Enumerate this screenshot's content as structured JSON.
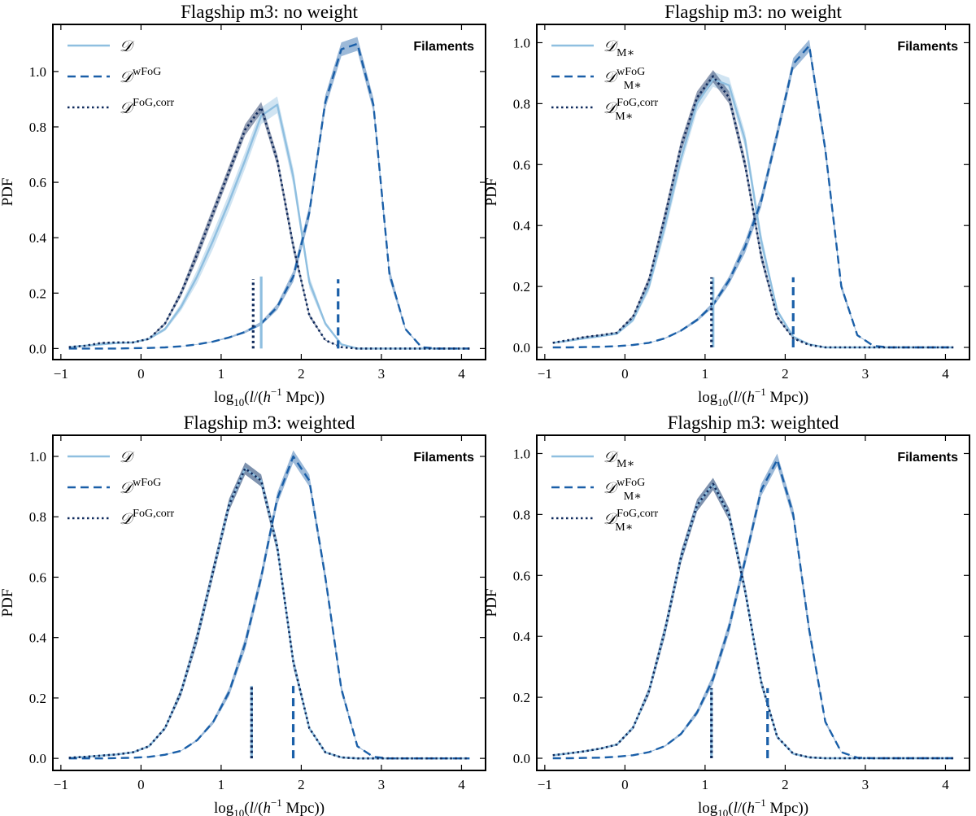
{
  "figure": {
    "colors": {
      "d": "#8fbfe0",
      "wfog": "#1a5fa8",
      "fogcorr": "#0f2a5c",
      "band_d": "#a9cde8",
      "band_wfog": "#4a7fb8",
      "band_fogcorr": "#3a4f77"
    }
  },
  "chart_data": [
    {
      "type": "line",
      "title": "Flagship m3: no weight",
      "xlabel": "log10(l/(h−1 Mpc))",
      "xlabel_parts": {
        "pre": "log",
        "sub": "10",
        "mid": "(l/(",
        "h": "h",
        "sup": "−1",
        "post": " Mpc))"
      },
      "ylabel": "PDF",
      "xlim": [
        -1.1,
        4.3
      ],
      "ylim": [
        -0.04,
        1.17
      ],
      "xticks": [
        -1,
        0,
        1,
        2,
        3,
        4
      ],
      "yticks": [
        0.0,
        0.2,
        0.4,
        0.6,
        0.8,
        1.0
      ],
      "annotation": "Filaments",
      "legend_position": "top-left",
      "series": [
        {
          "name": "D",
          "label_main": "𝒟",
          "label_sub": "",
          "label_sup": "",
          "style": "solid",
          "color": "#8fbfe0",
          "band": 0.03,
          "x": [
            -0.9,
            -0.7,
            -0.5,
            -0.3,
            -0.1,
            0.1,
            0.3,
            0.5,
            0.7,
            0.9,
            1.1,
            1.3,
            1.5,
            1.7,
            1.9,
            2.1,
            2.3,
            2.5,
            2.7,
            2.9,
            3.1,
            3.3,
            3.5,
            3.7,
            3.9,
            4.1
          ],
          "y": [
            0.005,
            0.01,
            0.015,
            0.02,
            0.022,
            0.035,
            0.07,
            0.15,
            0.26,
            0.39,
            0.53,
            0.68,
            0.84,
            0.88,
            0.62,
            0.24,
            0.09,
            0.015,
            0.0,
            0.0,
            0.0,
            0.0,
            0.0,
            0.0,
            0.0,
            0.0
          ],
          "median": 1.5,
          "median_height": 0.26
        },
        {
          "name": "D wFoG",
          "label_main": "𝒟",
          "label_sub": "",
          "label_sup": "wFoG",
          "style": "dashed",
          "color": "#1a5fa8",
          "band": 0.025,
          "x": [
            -0.9,
            -0.7,
            -0.5,
            -0.3,
            -0.1,
            0.1,
            0.3,
            0.5,
            0.7,
            0.9,
            1.1,
            1.3,
            1.5,
            1.7,
            1.9,
            2.1,
            2.3,
            2.5,
            2.7,
            2.9,
            3.1,
            3.3,
            3.5,
            3.7,
            3.9,
            4.1
          ],
          "y": [
            0.0,
            0.0,
            0.0,
            0.0,
            0.001,
            0.002,
            0.004,
            0.008,
            0.015,
            0.025,
            0.04,
            0.06,
            0.09,
            0.15,
            0.26,
            0.49,
            0.89,
            1.08,
            1.1,
            0.88,
            0.27,
            0.07,
            0.005,
            0.0,
            0.0,
            0.0
          ],
          "median": 2.46,
          "median_height": 0.25
        },
        {
          "name": "D FoG,corr",
          "label_main": "𝒟",
          "label_sub": "",
          "label_sup": "FoG,corr",
          "style": "dotted",
          "color": "#0f2a5c",
          "band": 0.02,
          "x": [
            -0.9,
            -0.7,
            -0.5,
            -0.3,
            -0.1,
            0.1,
            0.3,
            0.5,
            0.7,
            0.9,
            1.1,
            1.3,
            1.5,
            1.7,
            1.9,
            2.1,
            2.3,
            2.5,
            2.7,
            2.9,
            3.1,
            3.3,
            3.5,
            3.7,
            3.9,
            4.1
          ],
          "y": [
            0.005,
            0.01,
            0.02,
            0.022,
            0.022,
            0.035,
            0.09,
            0.2,
            0.34,
            0.49,
            0.64,
            0.79,
            0.87,
            0.68,
            0.37,
            0.12,
            0.03,
            0.005,
            0.0,
            0.0,
            0.0,
            0.0,
            0.0,
            0.0,
            0.0,
            0.0
          ],
          "median": 1.4,
          "median_height": 0.25
        }
      ]
    },
    {
      "type": "line",
      "title": "Flagship m3: no weight",
      "xlabel": "log10(l/(h−1 Mpc))",
      "xlabel_parts": {
        "pre": "log",
        "sub": "10",
        "mid": "(l/(",
        "h": "h",
        "sup": "−1",
        "post": " Mpc))"
      },
      "ylabel": "PDF",
      "xlim": [
        -1.1,
        4.3
      ],
      "ylim": [
        -0.04,
        1.06
      ],
      "xticks": [
        -1,
        0,
        1,
        2,
        3,
        4
      ],
      "yticks": [
        0.0,
        0.2,
        0.4,
        0.6,
        0.8,
        1.0
      ],
      "annotation": "Filaments",
      "legend_position": "top-left",
      "series": [
        {
          "name": "D M*",
          "label_main": "𝒟",
          "label_sub": "M∗",
          "label_sup": "",
          "style": "solid",
          "color": "#8fbfe0",
          "band": 0.025,
          "x": [
            -0.9,
            -0.7,
            -0.5,
            -0.3,
            -0.1,
            0.1,
            0.3,
            0.5,
            0.7,
            0.9,
            1.1,
            1.3,
            1.5,
            1.7,
            1.9,
            2.1,
            2.3,
            2.5,
            2.7,
            2.9,
            3.1,
            3.3,
            3.5,
            3.7,
            3.9,
            4.1
          ],
          "y": [
            0.015,
            0.022,
            0.03,
            0.037,
            0.045,
            0.09,
            0.2,
            0.4,
            0.62,
            0.8,
            0.88,
            0.86,
            0.68,
            0.35,
            0.12,
            0.035,
            0.01,
            0.0,
            0.0,
            0.0,
            0.0,
            0.0,
            0.0,
            0.0,
            0.0,
            0.0
          ],
          "median": 1.1,
          "median_height": 0.23
        },
        {
          "name": "D M* wFoG",
          "label_main": "𝒟",
          "label_sub": "M∗",
          "label_sup": "wFoG",
          "style": "dashed",
          "color": "#1a5fa8",
          "band": 0.02,
          "x": [
            -0.9,
            -0.7,
            -0.5,
            -0.3,
            -0.1,
            0.1,
            0.3,
            0.5,
            0.7,
            0.9,
            1.1,
            1.3,
            1.5,
            1.7,
            1.9,
            2.1,
            2.3,
            2.5,
            2.7,
            2.9,
            3.1,
            3.3,
            3.5,
            3.7,
            3.9,
            4.1
          ],
          "y": [
            0.0,
            0.0,
            0.001,
            0.002,
            0.004,
            0.008,
            0.015,
            0.03,
            0.055,
            0.09,
            0.14,
            0.22,
            0.33,
            0.48,
            0.7,
            0.93,
            0.99,
            0.65,
            0.2,
            0.04,
            0.005,
            0.0,
            0.0,
            0.0,
            0.0,
            0.0
          ],
          "median": 2.1,
          "median_height": 0.23
        },
        {
          "name": "D M* FoG,corr",
          "label_main": "𝒟",
          "label_sub": "M∗",
          "label_sup": "FoG,corr",
          "style": "dotted",
          "color": "#0f2a5c",
          "band": 0.02,
          "x": [
            -0.9,
            -0.7,
            -0.5,
            -0.3,
            -0.1,
            0.1,
            0.3,
            0.5,
            0.7,
            0.9,
            1.1,
            1.3,
            1.5,
            1.7,
            1.9,
            2.1,
            2.3,
            2.5,
            2.7,
            2.9,
            3.1,
            3.3,
            3.5,
            3.7,
            3.9,
            4.1
          ],
          "y": [
            0.015,
            0.024,
            0.034,
            0.04,
            0.048,
            0.1,
            0.22,
            0.43,
            0.66,
            0.82,
            0.89,
            0.82,
            0.6,
            0.3,
            0.1,
            0.03,
            0.008,
            0.0,
            0.0,
            0.0,
            0.0,
            0.0,
            0.0,
            0.0,
            0.0,
            0.0
          ],
          "median": 1.08,
          "median_height": 0.23
        }
      ]
    },
    {
      "type": "line",
      "title": "Flagship m3: weighted",
      "xlabel": "log10(l/(h−1 Mpc))",
      "xlabel_parts": {
        "pre": "log",
        "sub": "10",
        "mid": "(l/(",
        "h": "h",
        "sup": "−1",
        "post": " Mpc))"
      },
      "ylabel": "PDF",
      "xlim": [
        -1.1,
        4.3
      ],
      "ylim": [
        -0.04,
        1.07
      ],
      "xticks": [
        -1,
        0,
        1,
        2,
        3,
        4
      ],
      "yticks": [
        0.0,
        0.2,
        0.4,
        0.6,
        0.8,
        1.0
      ],
      "annotation": "Filaments",
      "legend_position": "top-left",
      "series": [
        {
          "name": "D",
          "label_main": "𝒟",
          "label_sub": "",
          "label_sup": "",
          "style": "solid",
          "color": "#8fbfe0",
          "band": 0.02,
          "x": [
            -0.9,
            -0.7,
            -0.5,
            -0.3,
            -0.1,
            0.1,
            0.3,
            0.5,
            0.7,
            0.9,
            1.1,
            1.3,
            1.5,
            1.7,
            1.9,
            2.1,
            2.3,
            2.5,
            2.7,
            2.9,
            3.1,
            3.3,
            3.5,
            3.7,
            3.9,
            4.1
          ],
          "y": [
            0.002,
            0.005,
            0.009,
            0.013,
            0.02,
            0.04,
            0.1,
            0.22,
            0.4,
            0.62,
            0.84,
            0.96,
            0.92,
            0.7,
            0.32,
            0.1,
            0.02,
            0.003,
            0.0,
            0.0,
            0.0,
            0.0,
            0.0,
            0.0,
            0.0,
            0.0
          ],
          "median": 1.38,
          "median_height": 0.24
        },
        {
          "name": "D wFoG",
          "label_main": "𝒟",
          "label_sub": "",
          "label_sup": "wFoG",
          "style": "dashed",
          "color": "#1a5fa8",
          "band": 0.02,
          "x": [
            -0.9,
            -0.7,
            -0.5,
            -0.3,
            -0.1,
            0.1,
            0.3,
            0.5,
            0.7,
            0.9,
            1.1,
            1.3,
            1.5,
            1.7,
            1.9,
            2.1,
            2.3,
            2.5,
            2.7,
            2.9,
            3.1,
            3.3,
            3.5,
            3.7,
            3.9,
            4.1
          ],
          "y": [
            0.0,
            0.0,
            0.0,
            0.001,
            0.002,
            0.005,
            0.012,
            0.025,
            0.06,
            0.12,
            0.22,
            0.38,
            0.6,
            0.86,
            1.0,
            0.92,
            0.6,
            0.23,
            0.04,
            0.005,
            0.0,
            0.0,
            0.0,
            0.0,
            0.0,
            0.0
          ],
          "median": 1.9,
          "median_height": 0.24
        },
        {
          "name": "D FoG,corr",
          "label_main": "𝒟",
          "label_sub": "",
          "label_sup": "FoG,corr",
          "style": "dotted",
          "color": "#0f2a5c",
          "band": 0.02,
          "x": [
            -0.9,
            -0.7,
            -0.5,
            -0.3,
            -0.1,
            0.1,
            0.3,
            0.5,
            0.7,
            0.9,
            1.1,
            1.3,
            1.5,
            1.7,
            1.9,
            2.1,
            2.3,
            2.5,
            2.7,
            2.9,
            3.1,
            3.3,
            3.5,
            3.7,
            3.9,
            4.1
          ],
          "y": [
            0.002,
            0.005,
            0.009,
            0.013,
            0.02,
            0.04,
            0.1,
            0.22,
            0.4,
            0.62,
            0.84,
            0.96,
            0.92,
            0.7,
            0.32,
            0.1,
            0.02,
            0.003,
            0.0,
            0.0,
            0.0,
            0.0,
            0.0,
            0.0,
            0.0,
            0.0
          ],
          "median": 1.38,
          "median_height": 0.24
        }
      ]
    },
    {
      "type": "line",
      "title": "Flagship m3: weighted",
      "xlabel": "log10(l/(h−1 Mpc))",
      "xlabel_parts": {
        "pre": "log",
        "sub": "10",
        "mid": "(l/(",
        "h": "h",
        "sup": "−1",
        "post": " Mpc))"
      },
      "ylabel": "PDF",
      "xlim": [
        -1.1,
        4.3
      ],
      "ylim": [
        -0.04,
        1.06
      ],
      "xticks": [
        -1,
        0,
        1,
        2,
        3,
        4
      ],
      "yticks": [
        0.0,
        0.2,
        0.4,
        0.6,
        0.8,
        1.0
      ],
      "annotation": "Filaments",
      "legend_position": "top-left",
      "series": [
        {
          "name": "D M*",
          "label_main": "𝒟",
          "label_sub": "M∗",
          "label_sup": "",
          "style": "solid",
          "color": "#8fbfe0",
          "band": 0.02,
          "x": [
            -0.9,
            -0.7,
            -0.5,
            -0.3,
            -0.1,
            0.1,
            0.3,
            0.5,
            0.7,
            0.9,
            1.1,
            1.3,
            1.5,
            1.7,
            1.9,
            2.1,
            2.3,
            2.5,
            2.7,
            2.9,
            3.1,
            3.3,
            3.5,
            3.7,
            3.9,
            4.1
          ],
          "y": [
            0.01,
            0.016,
            0.023,
            0.032,
            0.045,
            0.1,
            0.22,
            0.42,
            0.66,
            0.83,
            0.9,
            0.8,
            0.55,
            0.25,
            0.07,
            0.015,
            0.003,
            0.0,
            0.0,
            0.0,
            0.0,
            0.0,
            0.0,
            0.0,
            0.0,
            0.0
          ],
          "median": 1.08,
          "median_height": 0.23
        },
        {
          "name": "D M* wFoG",
          "label_main": "𝒟",
          "label_sub": "M∗",
          "label_sup": "wFoG",
          "style": "dashed",
          "color": "#1a5fa8",
          "band": 0.02,
          "x": [
            -0.9,
            -0.7,
            -0.5,
            -0.3,
            -0.1,
            0.1,
            0.3,
            0.5,
            0.7,
            0.9,
            1.1,
            1.3,
            1.5,
            1.7,
            1.9,
            2.1,
            2.3,
            2.5,
            2.7,
            2.9,
            3.1,
            3.3,
            3.5,
            3.7,
            3.9,
            4.1
          ],
          "y": [
            0.0,
            0.0,
            0.001,
            0.002,
            0.005,
            0.01,
            0.02,
            0.04,
            0.08,
            0.15,
            0.26,
            0.43,
            0.65,
            0.88,
            0.98,
            0.8,
            0.42,
            0.12,
            0.02,
            0.002,
            0.0,
            0.0,
            0.0,
            0.0,
            0.0,
            0.0
          ],
          "median": 1.78,
          "median_height": 0.23
        },
        {
          "name": "D M* FoG,corr",
          "label_main": "𝒟",
          "label_sub": "M∗",
          "label_sup": "FoG,corr",
          "style": "dotted",
          "color": "#0f2a5c",
          "band": 0.02,
          "x": [
            -0.9,
            -0.7,
            -0.5,
            -0.3,
            -0.1,
            0.1,
            0.3,
            0.5,
            0.7,
            0.9,
            1.1,
            1.3,
            1.5,
            1.7,
            1.9,
            2.1,
            2.3,
            2.5,
            2.7,
            2.9,
            3.1,
            3.3,
            3.5,
            3.7,
            3.9,
            4.1
          ],
          "y": [
            0.01,
            0.016,
            0.023,
            0.032,
            0.045,
            0.1,
            0.22,
            0.42,
            0.66,
            0.83,
            0.9,
            0.8,
            0.55,
            0.25,
            0.07,
            0.015,
            0.003,
            0.0,
            0.0,
            0.0,
            0.0,
            0.0,
            0.0,
            0.0,
            0.0,
            0.0
          ],
          "median": 1.08,
          "median_height": 0.23
        }
      ]
    }
  ]
}
